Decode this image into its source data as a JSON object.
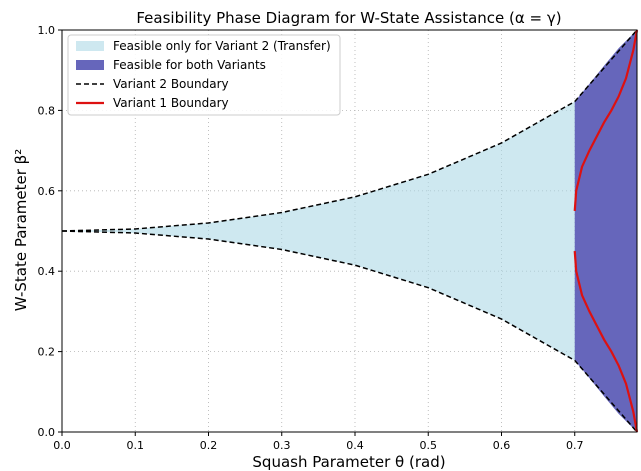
{
  "chart_data": {
    "type": "area",
    "title": "Feasibility Phase Diagram for W-State Assistance (α = γ)",
    "xlabel": "Squash Parameter θ (rad)",
    "ylabel": "W-State Parameter β²",
    "xlim": [
      0,
      0.785
    ],
    "ylim": [
      0,
      1
    ],
    "xticks": [
      0.0,
      0.1,
      0.2,
      0.3,
      0.4,
      0.5,
      0.6,
      0.7
    ],
    "yticks": [
      0.0,
      0.2,
      0.4,
      0.6,
      0.8,
      1.0
    ],
    "grid": true,
    "legend_position": "top-left",
    "series": [
      {
        "name": "Feasible only for Variant 2 (Transfer)",
        "kind": "fill",
        "color": "#add8e6",
        "x": [
          0,
          0.1,
          0.2,
          0.3,
          0.4,
          0.5,
          0.6,
          0.7,
          0.785
        ],
        "upper": [
          0.5,
          0.505,
          0.52,
          0.546,
          0.585,
          0.641,
          0.719,
          0.822,
          1.0
        ],
        "lower": [
          0.5,
          0.495,
          0.48,
          0.454,
          0.415,
          0.359,
          0.281,
          0.178,
          0.0
        ]
      },
      {
        "name": "Feasible for both Variants",
        "kind": "fill",
        "color": "#6666bb",
        "x": [
          0.7,
          0.72,
          0.74,
          0.76,
          0.785
        ],
        "upper": [
          0.822,
          0.866,
          0.911,
          0.955,
          1.0
        ],
        "lower": [
          0.178,
          0.134,
          0.089,
          0.045,
          0.0
        ]
      },
      {
        "name": "Variant 2 Boundary",
        "kind": "line",
        "style": "dashed",
        "color": "#000000",
        "x": [
          0,
          0.1,
          0.2,
          0.3,
          0.4,
          0.5,
          0.6,
          0.7,
          0.785
        ],
        "upper": [
          0.5,
          0.505,
          0.52,
          0.546,
          0.585,
          0.641,
          0.719,
          0.822,
          1.0
        ],
        "lower": [
          0.5,
          0.495,
          0.48,
          0.454,
          0.415,
          0.359,
          0.281,
          0.178,
          0.0
        ]
      },
      {
        "name": "Variant 1 Boundary",
        "kind": "line",
        "style": "solid",
        "color": "#dd1111",
        "upper": {
          "x": [
            0.7,
            0.702,
            0.71,
            0.72,
            0.73,
            0.74,
            0.75,
            0.76,
            0.77,
            0.78,
            0.785
          ],
          "y": [
            0.55,
            0.6,
            0.66,
            0.7,
            0.735,
            0.77,
            0.8,
            0.835,
            0.88,
            0.95,
            1.0
          ]
        },
        "lower": {
          "x": [
            0.7,
            0.702,
            0.71,
            0.72,
            0.73,
            0.74,
            0.75,
            0.76,
            0.77,
            0.78,
            0.785
          ],
          "y": [
            0.45,
            0.4,
            0.34,
            0.3,
            0.265,
            0.23,
            0.2,
            0.165,
            0.12,
            0.05,
            0.0
          ]
        }
      }
    ]
  }
}
